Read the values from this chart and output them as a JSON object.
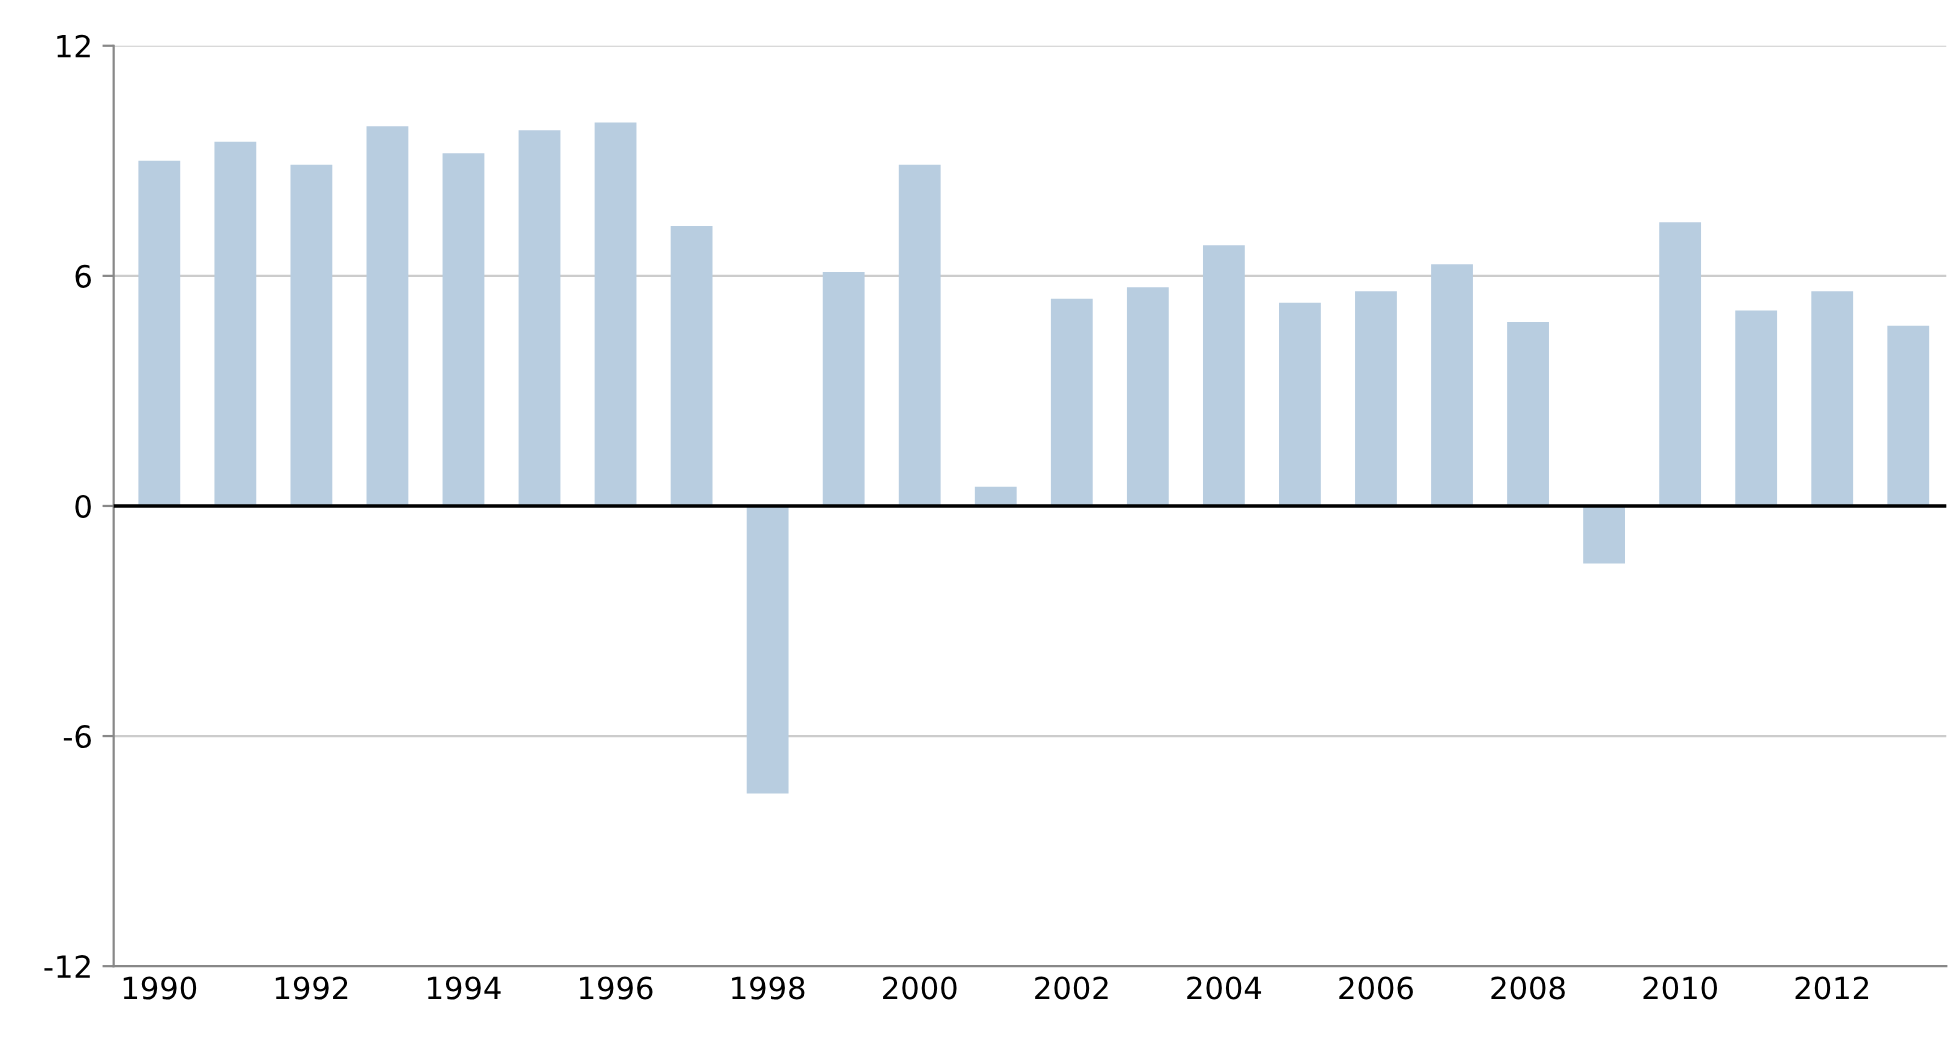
{
  "chart_data": {
    "type": "bar",
    "categories": [
      "1990",
      null,
      "1992",
      null,
      "1994",
      null,
      "1996",
      null,
      "1998",
      null,
      "2000",
      null,
      "2002",
      null,
      "2004",
      null,
      "2006",
      null,
      "2008",
      null,
      "2010",
      null,
      "2012",
      null
    ],
    "values": [
      9.0,
      9.5,
      8.9,
      9.9,
      9.2,
      9.8,
      10.0,
      7.3,
      -7.5,
      6.1,
      8.9,
      0.5,
      5.4,
      5.7,
      6.8,
      5.3,
      5.6,
      6.3,
      4.8,
      -1.5,
      7.4,
      5.1,
      5.6,
      4.7
    ],
    "color": "#b8cde0",
    "ylim": [
      -12,
      12
    ],
    "yticks": [
      -12,
      -6,
      0,
      6,
      12
    ],
    "grid": "y",
    "ref_lines": [
      {
        "axis": "y",
        "value": 0,
        "color": "#000000"
      }
    ]
  }
}
